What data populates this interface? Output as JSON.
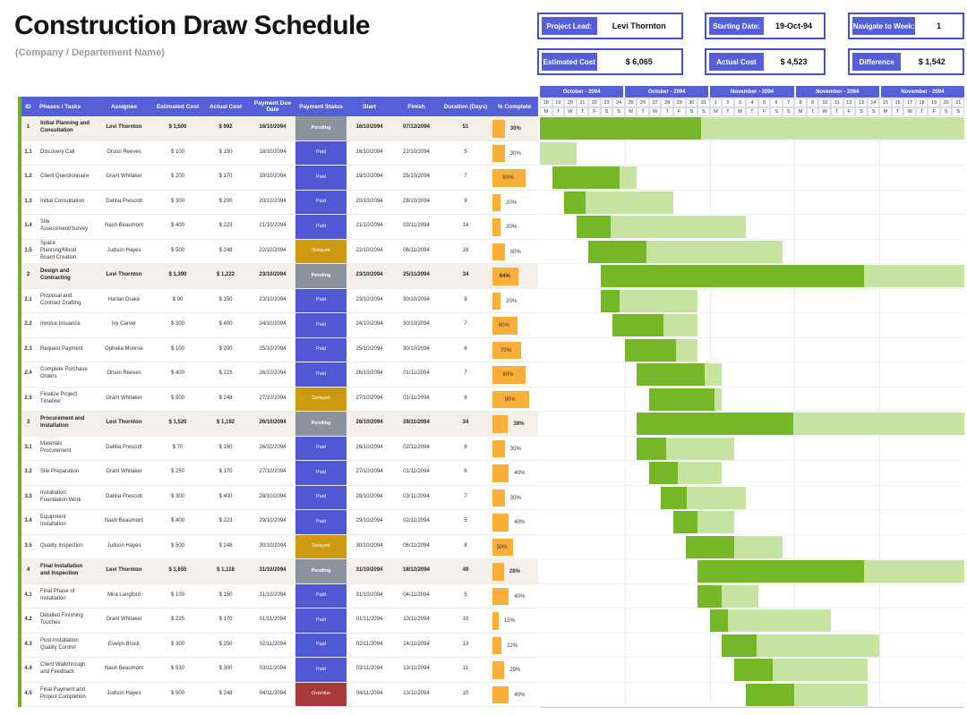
{
  "header": {
    "title": "Construction Draw Schedule",
    "subtitle": "(Company / Departement Name)",
    "info_boxes": [
      {
        "label": "Project Lead:",
        "value": "Levi Thornton"
      },
      {
        "label": "Starting Date:",
        "value": "19-Oct-94"
      },
      {
        "label": "Navigate to Week:",
        "value": "1"
      },
      {
        "label": "Estimated Cost",
        "value": "$ 6,065"
      },
      {
        "label": "Actual Cost",
        "value": "$ 4,523"
      },
      {
        "label": "Difference",
        "value": "$ 1,542"
      }
    ]
  },
  "colors": {
    "accent_blue": "#5560d6",
    "status": {
      "Pending": "#8d939d",
      "Paid": "#5158d4",
      "Delayed": "#cc9a10",
      "Overdue": "#a93a3c"
    },
    "pct_bar_orange": "#fbaf3a",
    "gantt_done_green": "#76b72a",
    "gantt_remaining_green": "#c7e3a1",
    "table_left_strip_green": "#6fb229",
    "section_row_bg": "#f4efe9"
  },
  "table": {
    "columns": [
      "ID",
      "Phases / Tasks",
      "Assignee",
      "Estimated Cost",
      "Actual Cost",
      "Payment Due Date",
      "Payment Status",
      "Start",
      "Finish",
      "Duration (Days)",
      "% Complete"
    ],
    "rows": [
      {
        "id": "1",
        "task": "Initial Planning and Consultation",
        "assignee": "Levi Thornton",
        "est": "$ 1,500",
        "act": "$ 992",
        "due": "16/10/2094",
        "status": "Pending",
        "start": "16/10/2094",
        "finish": "07/12/2094",
        "dur": 51,
        "pct": 30,
        "section": true
      },
      {
        "id": "1.1",
        "task": "Discovery Call",
        "assignee": "Orson Reeves",
        "est": "$ 100",
        "act": "$ 150",
        "due": "18/10/2094",
        "status": "Paid",
        "start": "16/10/2094",
        "finish": "22/10/2094",
        "dur": 5,
        "pct": 30,
        "section": false
      },
      {
        "id": "1.2",
        "task": "Client Questionnaire",
        "assignee": "Grant Whitaker",
        "est": "$ 200",
        "act": "$ 170",
        "due": "19/10/2094",
        "status": "Paid",
        "start": "19/10/2094",
        "finish": "25/10/2094",
        "dur": 7,
        "pct": 80,
        "section": false
      },
      {
        "id": "1.3",
        "task": "Initial Consultation",
        "assignee": "Dahlia Prescott",
        "est": "$ 300",
        "act": "$ 200",
        "due": "20/10/2094",
        "status": "Paid",
        "start": "20/10/2094",
        "finish": "28/10/2094",
        "dur": 9,
        "pct": 20,
        "section": false
      },
      {
        "id": "1.4",
        "task": "Site Assessment/Survey",
        "assignee": "Nash Beaumont",
        "est": "$ 400",
        "act": "$ 223",
        "due": "21/10/2094",
        "status": "Paid",
        "start": "21/10/2094",
        "finish": "03/11/2094",
        "dur": 14,
        "pct": 20,
        "section": false
      },
      {
        "id": "1.5",
        "task": "Space Planning/Mood Board Creation",
        "assignee": "Judson Hayes",
        "est": "$ 500",
        "act": "$ 248",
        "due": "22/10/2094",
        "status": "Delayed",
        "start": "22/10/2094",
        "finish": "06/11/2094",
        "dur": 16,
        "pct": 30,
        "section": false
      },
      {
        "id": "2",
        "task": "Design and Contracting",
        "assignee": "Levi Thornton",
        "est": "$ 1,390",
        "act": "$ 1,222",
        "due": "23/10/2094",
        "status": "Pending",
        "start": "23/10/2094",
        "finish": "25/11/2094",
        "dur": 34,
        "pct": 64,
        "section": true
      },
      {
        "id": "2.1",
        "task": "Proposal and Contract Drafting",
        "assignee": "Harlan Drake",
        "est": "$ 90",
        "act": "$ 150",
        "due": "23/10/2094",
        "status": "Paid",
        "start": "23/10/2094",
        "finish": "30/10/2094",
        "dur": 8,
        "pct": 20,
        "section": false
      },
      {
        "id": "2.2",
        "task": "Invoice Issuance",
        "assignee": "Ivy Carver",
        "est": "$ 300",
        "act": "$ 400",
        "due": "24/10/2094",
        "status": "Paid",
        "start": "24/10/2094",
        "finish": "30/10/2094",
        "dur": 7,
        "pct": 60,
        "section": false
      },
      {
        "id": "2.3",
        "task": "Request Payment",
        "assignee": "Ophelia Monroe",
        "est": "$ 100",
        "act": "$ 200",
        "due": "25/10/2094",
        "status": "Paid",
        "start": "25/10/2094",
        "finish": "30/10/2094",
        "dur": 6,
        "pct": 70,
        "section": false
      },
      {
        "id": "2.4",
        "task": "Complete Purchase Orders",
        "assignee": "Orson Reeves",
        "est": "$ 400",
        "act": "$ 223",
        "due": "26/10/2094",
        "status": "Paid",
        "start": "26/10/2094",
        "finish": "01/11/2094",
        "dur": 7,
        "pct": 80,
        "section": false
      },
      {
        "id": "2.5",
        "task": "Finalize Project Timeline",
        "assignee": "Grant Whitaker",
        "est": "$ 500",
        "act": "$ 248",
        "due": "27/10/2094",
        "status": "Delayed",
        "start": "27/10/2094",
        "finish": "01/11/2094",
        "dur": 6,
        "pct": 90,
        "section": false
      },
      {
        "id": "3",
        "task": "Procurement and Installation",
        "assignee": "Levi Thornton",
        "est": "$ 1,520",
        "act": "$ 1,192",
        "due": "26/10/2094",
        "status": "Pending",
        "start": "26/10/2094",
        "finish": "28/11/2094",
        "dur": 34,
        "pct": 38,
        "section": true
      },
      {
        "id": "3.1",
        "task": "Materials Procurement",
        "assignee": "Dahlia Prescott",
        "est": "$ 70",
        "act": "$ 150",
        "due": "26/10/2094",
        "status": "Paid",
        "start": "26/10/2094",
        "finish": "02/11/2094",
        "dur": 8,
        "pct": 30,
        "section": false
      },
      {
        "id": "3.2",
        "task": "Site Preparation",
        "assignee": "Grant Whitaker",
        "est": "$ 250",
        "act": "$ 170",
        "due": "27/10/2094",
        "status": "Paid",
        "start": "27/10/2094",
        "finish": "01/11/2094",
        "dur": 6,
        "pct": 40,
        "section": false
      },
      {
        "id": "3.3",
        "task": "Installation: Foundation Work",
        "assignee": "Dahlia Prescott",
        "est": "$ 300",
        "act": "$ 400",
        "due": "28/10/2094",
        "status": "Paid",
        "start": "28/10/2094",
        "finish": "03/11/2094",
        "dur": 7,
        "pct": 30,
        "section": false
      },
      {
        "id": "3.4",
        "task": "Equipment Installation",
        "assignee": "Nash Beaumont",
        "est": "$ 400",
        "act": "$ 223",
        "due": "29/10/2094",
        "status": "Paid",
        "start": "29/10/2094",
        "finish": "02/11/2094",
        "dur": 5,
        "pct": 40,
        "section": false
      },
      {
        "id": "3.5",
        "task": "Quality Inspection",
        "assignee": "Judson Hayes",
        "est": "$ 500",
        "act": "$ 248",
        "due": "30/10/2094",
        "status": "Delayed",
        "start": "30/10/2094",
        "finish": "06/11/2094",
        "dur": 8,
        "pct": 50,
        "section": false
      },
      {
        "id": "4",
        "task": "Final Installation and Inspection",
        "assignee": "Levi Thornton",
        "est": "$ 1,655",
        "act": "$ 1,118",
        "due": "31/10/2094",
        "status": "Pending",
        "start": "31/10/2094",
        "finish": "18/12/2094",
        "dur": 49,
        "pct": 28,
        "section": true
      },
      {
        "id": "4.1",
        "task": "Final Phase of Installation",
        "assignee": "Mira Langford",
        "est": "$ 100",
        "act": "$ 150",
        "due": "31/10/2094",
        "status": "Paid",
        "start": "31/10/2094",
        "finish": "04/11/2094",
        "dur": 5,
        "pct": 40,
        "section": false
      },
      {
        "id": "4.2",
        "task": "Detailed Finishing Touches",
        "assignee": "Grant Whitaker",
        "est": "$ 225",
        "act": "$ 170",
        "due": "01/11/2094",
        "status": "Paid",
        "start": "01/11/2094",
        "finish": "10/11/2094",
        "dur": 10,
        "pct": 15,
        "section": false
      },
      {
        "id": "4.3",
        "task": "Post-Installation Quality Control",
        "assignee": "Evelyn Brock",
        "est": "$ 300",
        "act": "$ 250",
        "due": "02/11/2094",
        "status": "Paid",
        "start": "02/11/2094",
        "finish": "14/11/2094",
        "dur": 13,
        "pct": 22,
        "section": false
      },
      {
        "id": "4.4",
        "task": "Client Walkthrough and Feedback",
        "assignee": "Nash Beaumont",
        "est": "$ 530",
        "act": "$ 300",
        "due": "03/11/2094",
        "status": "Paid",
        "start": "03/11/2094",
        "finish": "13/11/2094",
        "dur": 11,
        "pct": 29,
        "section": false
      },
      {
        "id": "4.5",
        "task": "Final Payment and Project Completion",
        "assignee": "Judson Hayes",
        "est": "$ 500",
        "act": "$ 248",
        "due": "04/11/2094",
        "status": "Overdue",
        "start": "04/11/2094",
        "finish": "13/11/2094",
        "dur": 10,
        "pct": 40,
        "section": false
      }
    ]
  },
  "gantt": {
    "range_days": 35,
    "chart_start": "18/10/2094",
    "weeks": [
      {
        "label": "October - 2094",
        "days": [
          18,
          19,
          20,
          21,
          22,
          23,
          24
        ]
      },
      {
        "label": "October - 2094",
        "days": [
          25,
          26,
          27,
          28,
          29,
          30,
          31
        ]
      },
      {
        "label": "November - 2094",
        "days": [
          1,
          2,
          3,
          4,
          5,
          6,
          7
        ]
      },
      {
        "label": "November - 2094",
        "days": [
          8,
          9,
          10,
          11,
          12,
          13,
          14
        ]
      },
      {
        "label": "November - 2094",
        "days": [
          15,
          16,
          17,
          18,
          19,
          20,
          21
        ]
      }
    ],
    "day_letters": [
      "M",
      "T",
      "W",
      "T",
      "F",
      "S",
      "S"
    ]
  }
}
